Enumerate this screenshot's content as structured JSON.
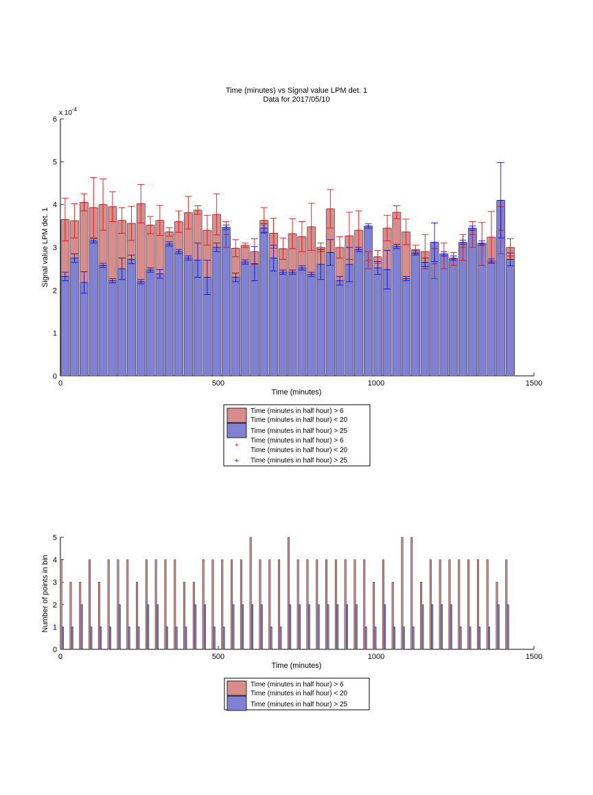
{
  "colors": {
    "red_fill": "#d98c8c",
    "blue_fill": "#8080d5",
    "red_line": "#dd1111",
    "blue_line": "#1111cc"
  },
  "legend_labels": {
    "red_bar": [
      "Time (minutes in half hour) > 6",
      "Time (minutes in half hour) < 20"
    ],
    "blue_bar": [
      "Time (minutes in half hour) > 25"
    ],
    "red_marker": [
      "Time (minutes in half hour) > 6",
      "Time (minutes in half hour) < 20"
    ],
    "blue_marker": [
      "Time (minutes in half hour) > 25"
    ]
  },
  "chart_data": [
    {
      "type": "bar",
      "title": "Time (minutes) vs Signal value LPM det. 1",
      "subtitle": "Data for 2017/05/10",
      "xlabel": "Time (minutes)",
      "ylabel": "Signal value LPM det. 1",
      "xlim": [
        0,
        1500
      ],
      "ylim": [
        0,
        6
      ],
      "y_exponent_label": "x 10",
      "y_exponent_power": "-4",
      "xticks": [
        0,
        500,
        1000,
        1500
      ],
      "yticks": [
        0,
        1,
        2,
        3,
        4,
        5,
        6
      ],
      "bin_width_minutes": 30,
      "legend_position": "below",
      "x": [
        15,
        45,
        75,
        105,
        135,
        165,
        195,
        225,
        255,
        285,
        315,
        345,
        375,
        405,
        435,
        465,
        495,
        525,
        555,
        585,
        615,
        645,
        675,
        705,
        735,
        765,
        795,
        825,
        855,
        885,
        915,
        945,
        975,
        1005,
        1035,
        1065,
        1095,
        1125,
        1155,
        1185,
        1215,
        1245,
        1275,
        1305,
        1335,
        1365,
        1395,
        1425
      ],
      "series": [
        {
          "name": "Time (minutes in half hour) > 6 / Time (minutes in half hour) < 20",
          "values": [
            3.65,
            3.62,
            4.05,
            3.93,
            4.0,
            3.95,
            3.63,
            3.56,
            4.02,
            3.52,
            3.63,
            3.36,
            3.6,
            3.81,
            3.87,
            3.4,
            3.77,
            3.3,
            2.98,
            3.05,
            2.9,
            3.63,
            3.33,
            2.97,
            3.32,
            3.25,
            3.48,
            3.0,
            3.9,
            3.0,
            3.27,
            3.4,
            2.7,
            2.78,
            3.45,
            3.82,
            3.36,
            2.95,
            2.9,
            2.62,
            2.8,
            2.73,
            3.0,
            3.3,
            3.08,
            3.24,
            3.4,
            3.0
          ],
          "error": [
            0.5,
            0.4,
            0.2,
            0.7,
            0.6,
            0.35,
            0.3,
            0.4,
            0.45,
            0.2,
            0.35,
            0.1,
            0.25,
            0.38,
            0.1,
            0.35,
            0.48,
            0.3,
            0.2,
            0.05,
            0.3,
            0.3,
            0.35,
            0.25,
            0.35,
            0.35,
            0.55,
            0.1,
            0.45,
            0.25,
            0.55,
            0.45,
            0.2,
            0.15,
            0.3,
            0.15,
            0.3,
            0.1,
            0.4,
            0.35,
            0.3,
            0.15,
            0.3,
            0.3,
            0.5,
            0.6,
            0.55,
            0.2
          ]
        },
        {
          "name": "Time (minutes in half hour) > 25",
          "values": [
            2.32,
            2.75,
            2.18,
            3.15,
            2.58,
            2.22,
            2.5,
            2.72,
            2.2,
            2.47,
            2.38,
            3.08,
            2.9,
            2.75,
            2.7,
            2.3,
            3.0,
            3.47,
            2.3,
            2.66,
            2.62,
            3.45,
            2.75,
            2.42,
            2.42,
            2.52,
            2.37,
            2.6,
            2.88,
            2.22,
            2.6,
            2.95,
            3.5,
            2.52,
            2.48,
            3.02,
            2.27,
            2.87,
            2.65,
            3.12,
            2.85,
            2.75,
            3.12,
            3.45,
            3.1,
            2.68,
            4.1,
            2.72
          ],
          "error": [
            0.1,
            0.1,
            0.25,
            0.05,
            0.05,
            0.05,
            0.25,
            0.1,
            0.05,
            0.05,
            0.1,
            0.05,
            0.05,
            0.05,
            0.4,
            0.4,
            0.1,
            0.05,
            0.1,
            0.05,
            0.4,
            0.1,
            0.3,
            0.05,
            0.05,
            0.05,
            0.05,
            0.35,
            0.3,
            0.1,
            0.4,
            0.05,
            0.05,
            0.15,
            0.45,
            0.05,
            0.05,
            0.05,
            0.1,
            0.45,
            0.05,
            0.05,
            0.05,
            0.05,
            0.05,
            0.05,
            0.88,
            0.15
          ]
        }
      ]
    },
    {
      "type": "bar",
      "xlabel": "Time (minutes)",
      "ylabel": "Number of points in bin",
      "xlim": [
        0,
        1500
      ],
      "ylim": [
        0,
        5
      ],
      "xticks": [
        0,
        500,
        1000,
        1500
      ],
      "yticks": [
        0,
        1,
        2,
        3,
        4,
        5
      ],
      "legend_position": "below",
      "x": [
        15,
        45,
        75,
        105,
        135,
        165,
        195,
        225,
        255,
        285,
        315,
        345,
        375,
        405,
        435,
        465,
        495,
        525,
        555,
        585,
        615,
        645,
        675,
        705,
        735,
        765,
        795,
        825,
        855,
        885,
        915,
        945,
        975,
        1005,
        1035,
        1065,
        1095,
        1125,
        1155,
        1185,
        1215,
        1245,
        1275,
        1305,
        1335,
        1365,
        1395,
        1425
      ],
      "series": [
        {
          "name": "Time (minutes in half hour) > 6 / Time (minutes in half hour) < 20",
          "values": [
            4,
            3,
            3,
            4,
            3,
            4,
            4,
            4,
            3,
            4,
            4,
            4,
            4,
            3,
            3,
            4,
            4,
            4,
            4,
            4,
            5,
            4,
            4,
            4,
            5,
            4,
            4,
            4,
            4,
            4,
            4,
            4,
            4,
            3,
            4,
            3,
            5,
            5,
            3,
            4,
            4,
            4,
            4,
            4,
            4,
            4,
            3,
            4
          ]
        },
        {
          "name": "Time (minutes in half hour) > 25",
          "values": [
            1,
            1,
            2,
            1,
            1,
            1,
            2,
            1,
            1,
            2,
            2,
            1,
            1,
            1,
            2,
            2,
            1,
            1,
            2,
            2,
            2,
            2,
            1,
            1,
            2,
            2,
            2,
            2,
            2,
            2,
            2,
            2,
            1,
            1,
            2,
            1,
            1,
            1,
            2,
            2,
            2,
            2,
            1,
            1,
            1,
            1,
            2,
            2
          ]
        }
      ]
    }
  ]
}
